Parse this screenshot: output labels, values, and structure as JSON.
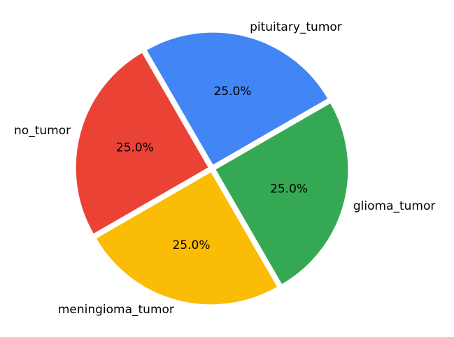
{
  "chart_data": {
    "type": "pie",
    "categories": [
      "pituitary_tumor",
      "no_tumor",
      "meningioma_tumor",
      "glioma_tumor"
    ],
    "values": [
      25.0,
      25.0,
      25.0,
      25.0
    ],
    "percent_labels": [
      "25.0%",
      "25.0%",
      "25.0%",
      "25.0%"
    ],
    "colors": [
      "#4285F4",
      "#EA4335",
      "#FBBC05",
      "#34A853"
    ],
    "start_angle_deg": 30,
    "direction": "counterclockwise",
    "exploded": true
  }
}
